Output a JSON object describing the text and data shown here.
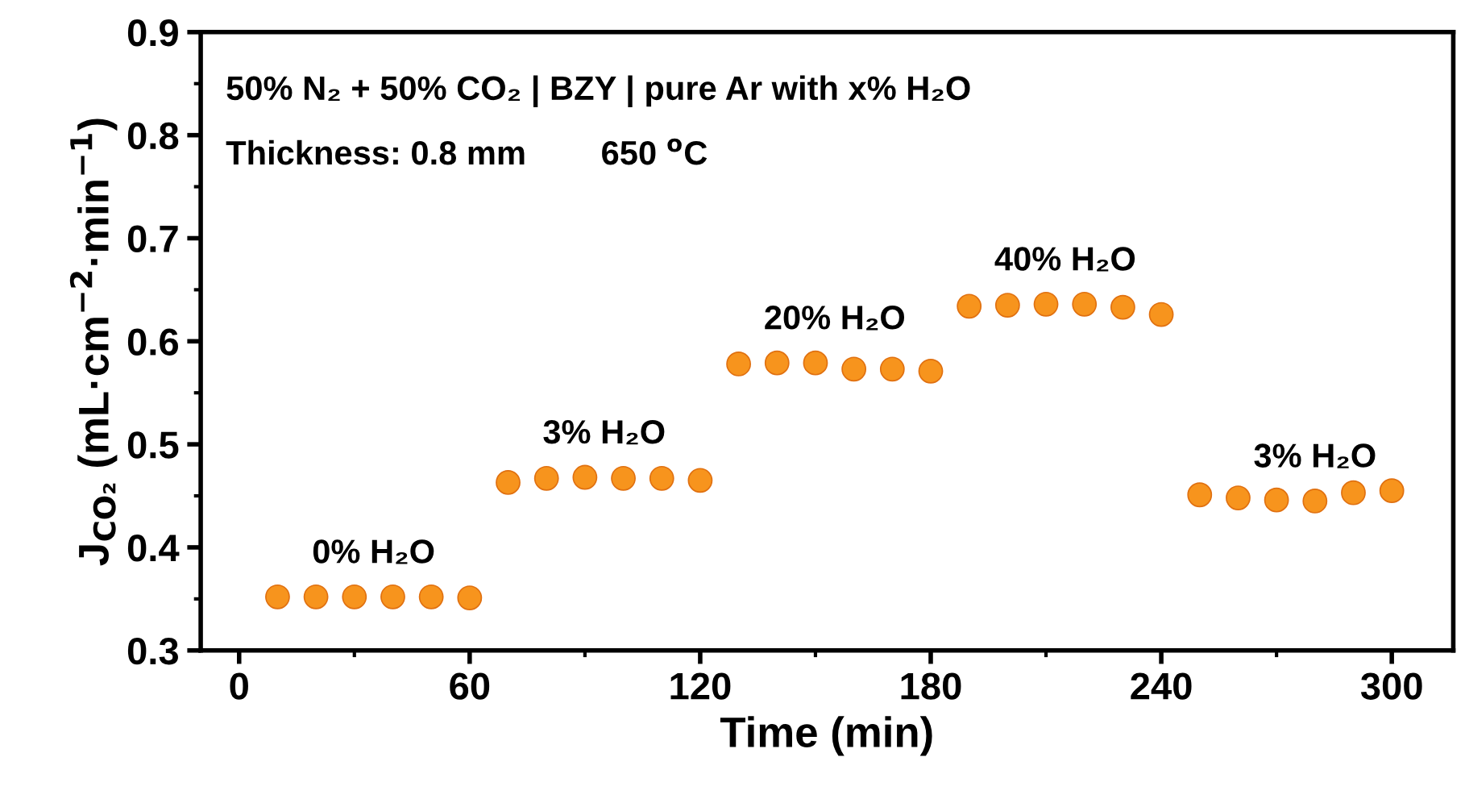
{
  "chart_data": {
    "type": "scatter",
    "xlabel": "Time (min)",
    "ylabel": "J$_{CO₂}$ (mL·cm$^{−2}$·min$^{−1}$)",
    "x": [
      10,
      20,
      30,
      40,
      50,
      60,
      70,
      80,
      90,
      100,
      110,
      120,
      130,
      140,
      150,
      160,
      170,
      180,
      190,
      200,
      210,
      220,
      230,
      240,
      250,
      260,
      270,
      280,
      290,
      300
    ],
    "series": [
      {
        "color": "#f7941d",
        "values": [
          0.352,
          0.352,
          0.352,
          0.352,
          0.352,
          0.351,
          0.463,
          0.467,
          0.468,
          0.467,
          0.467,
          0.465,
          0.578,
          0.579,
          0.579,
          0.573,
          0.573,
          0.571,
          0.634,
          0.635,
          0.636,
          0.636,
          0.633,
          0.626,
          0.451,
          0.448,
          0.446,
          0.445,
          0.453,
          0.455
        ]
      }
    ],
    "marker": "circle",
    "grid": false,
    "legend": false,
    "xlim": [
      -10,
      316
    ],
    "xticks": [
      0,
      60,
      120,
      180,
      240,
      300
    ],
    "ylim": [
      0.3,
      0.9
    ],
    "yticks": [
      0.3,
      0.4,
      0.5,
      0.6,
      0.7,
      0.8,
      0.9
    ],
    "annotations": [
      "50% N₂ + 50% CO₂ | BZY | pure Ar with x% H₂O",
      "Thickness: 0.8 mm        650 $^{o}$C",
      {
        "text": "0% H₂O",
        "x": 35,
        "y": 0.352
      },
      {
        "text": "3% H₂O",
        "x": 95,
        "y": 0.468
      },
      {
        "text": "20% H₂O",
        "x": 155,
        "y": 0.579
      },
      {
        "text": "40% H₂O",
        "x": 215,
        "y": 0.636
      },
      {
        "text": "3% H₂O",
        "x": 280,
        "y": 0.445
      }
    ]
  }
}
